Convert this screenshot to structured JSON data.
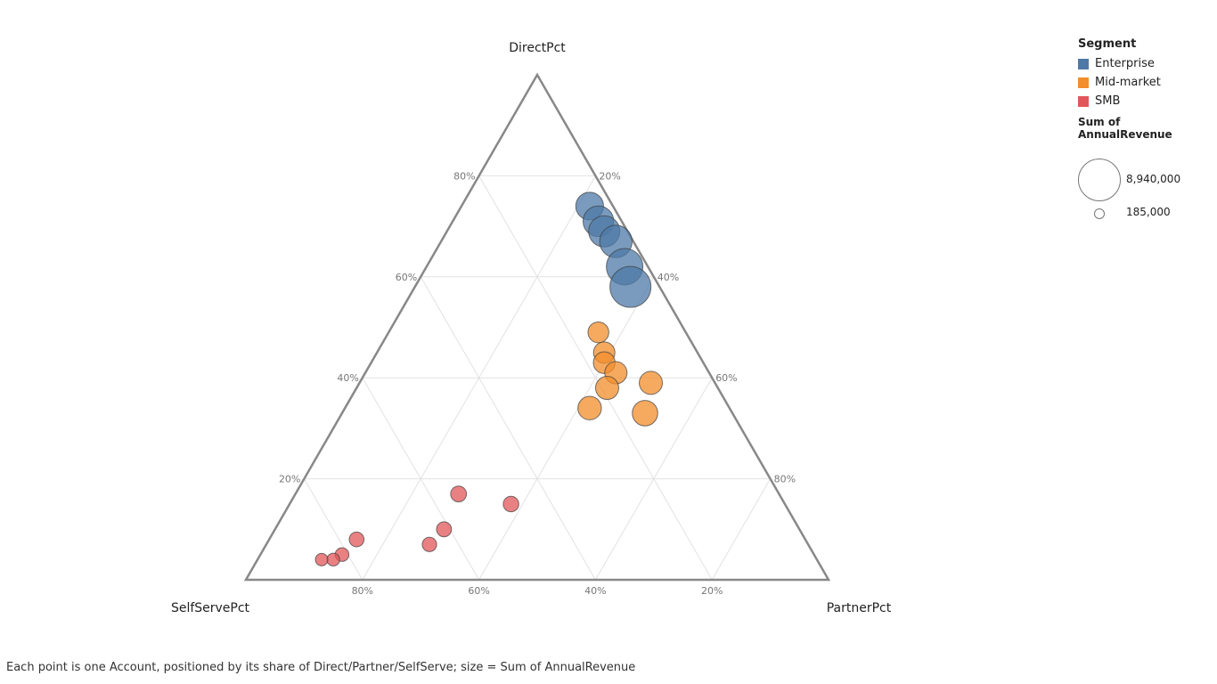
{
  "caption": "Each point is one Account, positioned by its share of Direct/Partner/SelfServe; size = Sum of AnnualRevenue",
  "legend": {
    "segment_title": "Segment",
    "items": [
      {
        "label": "Enterprise",
        "color": "#4e79a7"
      },
      {
        "label": "Mid-market",
        "color": "#f28e2b"
      },
      {
        "label": "SMB",
        "color": "#e15759"
      }
    ],
    "size_title": "Sum of AnnualRevenue",
    "size_max_label": "8,940,000",
    "size_min_label": "185,000"
  },
  "chart_data": {
    "type": "scatter",
    "subtype": "ternary",
    "axes": {
      "top": "DirectPct",
      "left": "SelfServePct",
      "right": "PartnerPct"
    },
    "tick_labels": [
      "20%",
      "40%",
      "60%",
      "80%"
    ],
    "grid": true,
    "legend_position": "top-right",
    "size_measure": "Sum of AnnualRevenue",
    "size_range": [
      185000,
      8940000
    ],
    "series": [
      {
        "name": "Enterprise",
        "color": "#4e79a7",
        "points": [
          {
            "direct": 74,
            "partner": 22,
            "self": 4,
            "size": 3200000
          },
          {
            "direct": 71,
            "partner": 25,
            "self": 4,
            "size": 4200000
          },
          {
            "direct": 69,
            "partner": 27,
            "self": 4,
            "size": 4400000
          },
          {
            "direct": 67,
            "partner": 30,
            "self": 3,
            "size": 4900000
          },
          {
            "direct": 62,
            "partner": 34,
            "self": 4,
            "size": 6700000
          },
          {
            "direct": 58,
            "partner": 37,
            "self": 5,
            "size": 8940000
          }
        ]
      },
      {
        "name": "Mid-market",
        "color": "#f28e2b",
        "points": [
          {
            "direct": 49,
            "partner": 36,
            "self": 15,
            "size": 1400000
          },
          {
            "direct": 45,
            "partner": 39,
            "self": 16,
            "size": 1500000
          },
          {
            "direct": 43,
            "partner": 40,
            "self": 17,
            "size": 1600000
          },
          {
            "direct": 41,
            "partner": 43,
            "self": 16,
            "size": 1700000
          },
          {
            "direct": 38,
            "partner": 43,
            "self": 19,
            "size": 1900000
          },
          {
            "direct": 39,
            "partner": 50,
            "self": 11,
            "size": 1900000
          },
          {
            "direct": 34,
            "partner": 42,
            "self": 24,
            "size": 2000000
          },
          {
            "direct": 33,
            "partner": 52,
            "self": 15,
            "size": 2500000
          }
        ]
      },
      {
        "name": "SMB",
        "color": "#e15759",
        "points": [
          {
            "direct": 17,
            "partner": 28,
            "self": 55,
            "size": 590000
          },
          {
            "direct": 15,
            "partner": 38,
            "self": 47,
            "size": 560000
          },
          {
            "direct": 10,
            "partner": 29,
            "self": 61,
            "size": 500000
          },
          {
            "direct": 8,
            "partner": 15,
            "self": 77,
            "size": 480000
          },
          {
            "direct": 7,
            "partner": 28,
            "self": 65,
            "size": 450000
          },
          {
            "direct": 5,
            "partner": 14,
            "self": 81,
            "size": 380000
          },
          {
            "direct": 4,
            "partner": 13,
            "self": 83,
            "size": 320000
          },
          {
            "direct": 4,
            "partner": 11,
            "self": 85,
            "size": 290000
          }
        ]
      }
    ]
  }
}
